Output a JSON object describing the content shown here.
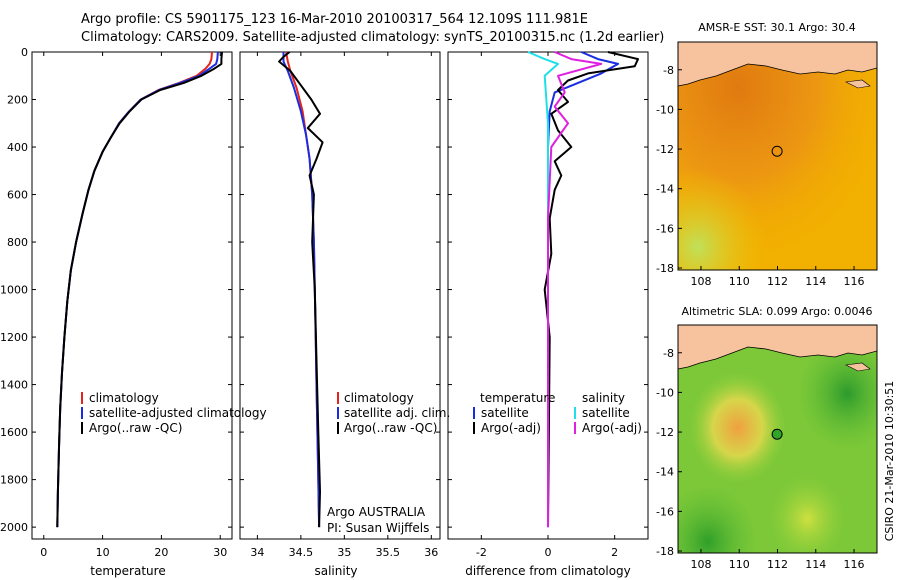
{
  "header": {
    "line1": "Argo profile: CS 5901175_123 16-Mar-2010 20100317_564 12.109S 111.981E",
    "line2": "Climatology: CARS2009. Satellite-adjusted climatology: synTS_20100315.nc (1.2d earlier)"
  },
  "side_label": "CSIRO 21-Mar-2010 10:30:51",
  "colors": {
    "climatology": "#e4231b",
    "satellite": "#1a2de0",
    "argo": "#000000",
    "salinity_sat": "#1fe0e8",
    "salinity_argo": "#e020e0",
    "land": "#f7c39e"
  },
  "chart_data": [
    {
      "id": "temperature",
      "type": "line",
      "xlabel": "temperature",
      "ylabel": "",
      "xlim": [
        -2,
        32
      ],
      "ylim": [
        2050,
        0
      ],
      "xticks": [
        0,
        10,
        20,
        30
      ],
      "yticks": [
        0,
        200,
        400,
        600,
        800,
        1000,
        1200,
        1400,
        1600,
        1800,
        2000
      ],
      "legend": {
        "position": "lower-center",
        "entries": [
          "climatology",
          "satellite-adjusted climatology",
          "Argo(..raw -QC)"
        ]
      },
      "series": [
        {
          "name": "climatology",
          "color_key": "climatology",
          "x": [
            28.6,
            28.5,
            28.2,
            27.5,
            26,
            23,
            19.5,
            16.5,
            14.5,
            12.8,
            11.4,
            10,
            8.6,
            7.6,
            6.6,
            5.5,
            4.6,
            4,
            3.5,
            3.1,
            2.8,
            2.6,
            2.4,
            2.3
          ],
          "y": [
            0,
            30,
            50,
            70,
            100,
            130,
            160,
            200,
            250,
            300,
            360,
            420,
            500,
            580,
            680,
            800,
            920,
            1050,
            1200,
            1350,
            1500,
            1650,
            1850,
            2000
          ]
        },
        {
          "name": "satellite-adjusted climatology",
          "color_key": "satellite",
          "x": [
            29.6,
            29.5,
            29.3,
            28.2,
            26.4,
            23.2,
            19.6,
            16.5,
            14.5,
            12.8,
            11.4,
            10,
            8.6,
            7.6,
            6.6,
            5.5,
            4.6,
            4,
            3.5,
            3.1,
            2.8,
            2.6,
            2.4,
            2.3
          ],
          "y": [
            0,
            30,
            50,
            70,
            100,
            130,
            160,
            200,
            250,
            300,
            360,
            420,
            500,
            580,
            680,
            800,
            920,
            1050,
            1200,
            1350,
            1500,
            1650,
            1850,
            2000
          ]
        },
        {
          "name": "Argo(..raw -QC)",
          "color_key": "argo",
          "x": [
            30.3,
            30.2,
            30.2,
            29,
            26.8,
            23.8,
            19.8,
            16.6,
            14.6,
            12.9,
            11.4,
            10,
            8.6,
            7.6,
            6.6,
            5.5,
            4.6,
            4,
            3.5,
            3.1,
            2.8,
            2.6,
            2.4,
            2.3
          ],
          "y": [
            0,
            30,
            50,
            70,
            100,
            130,
            160,
            200,
            250,
            300,
            360,
            420,
            500,
            580,
            680,
            800,
            920,
            1050,
            1200,
            1350,
            1500,
            1650,
            1850,
            2000
          ]
        }
      ]
    },
    {
      "id": "salinity",
      "type": "line",
      "xlabel": "salinity",
      "ylabel": "",
      "xlim": [
        33.8,
        36.1
      ],
      "ylim": [
        2050,
        0
      ],
      "xticks": [
        34,
        34.5,
        35,
        35.5,
        36
      ],
      "xtick_labels": [
        "34",
        "34.5",
        "35",
        "35.5",
        "36"
      ],
      "legend": {
        "position": "lower-center",
        "entries": [
          "climatology",
          "satellite adj. clim.",
          "Argo(..raw -QC)"
        ]
      },
      "annotation": [
        "Argo AUSTRALIA",
        "PI: Susan Wijffels"
      ],
      "series": [
        {
          "name": "climatology",
          "color_key": "climatology",
          "x": [
            34.33,
            34.35,
            34.38,
            34.45,
            34.52,
            34.56,
            34.6,
            34.63,
            34.65,
            34.66,
            34.67,
            34.68,
            34.69,
            34.7,
            34.71
          ],
          "y": [
            0,
            40,
            80,
            150,
            250,
            350,
            450,
            600,
            800,
            1000,
            1200,
            1400,
            1600,
            1800,
            2000
          ]
        },
        {
          "name": "satellite adj. clim.",
          "color_key": "satellite",
          "x": [
            34.3,
            34.3,
            34.35,
            34.42,
            34.5,
            34.56,
            34.6,
            34.63,
            34.65,
            34.66,
            34.67,
            34.68,
            34.69,
            34.7,
            34.71
          ],
          "y": [
            0,
            40,
            80,
            150,
            250,
            350,
            450,
            600,
            800,
            1000,
            1200,
            1400,
            1600,
            1800,
            2000
          ]
        },
        {
          "name": "Argo(..raw -QC)",
          "color_key": "argo",
          "x": [
            34.37,
            34.3,
            34.25,
            34.38,
            34.5,
            34.62,
            34.72,
            34.58,
            34.75,
            34.68,
            34.6,
            34.65,
            34.63,
            34.66,
            34.68,
            34.7,
            34.72,
            34.71
          ],
          "y": [
            0,
            20,
            40,
            80,
            140,
            200,
            260,
            320,
            380,
            450,
            520,
            600,
            800,
            1000,
            1300,
            1600,
            1850,
            2000
          ]
        }
      ]
    },
    {
      "id": "difference",
      "type": "line",
      "xlabel": "difference from climatology",
      "ylabel": "",
      "xlim": [
        -3,
        3
      ],
      "ylim": [
        2050,
        0
      ],
      "xticks": [
        -2,
        0,
        2
      ],
      "legend": {
        "position": "lower-center",
        "headers": [
          "temperature",
          "salinity"
        ],
        "entries": [
          "satellite",
          "Argo(-adj)",
          "satellite",
          "Argo(-adj)"
        ]
      },
      "series": [
        {
          "name": "temperature satellite",
          "color_key": "satellite",
          "x": [
            1,
            1.5,
            2.1,
            1.6,
            0.9,
            0.2,
            0.05,
            0,
            0,
            0
          ],
          "y": [
            0,
            30,
            50,
            90,
            130,
            170,
            250,
            400,
            1000,
            2000
          ]
        },
        {
          "name": "temperature Argo(-adj)",
          "color_key": "argo",
          "x": [
            1.8,
            2.7,
            2.6,
            1.2,
            0.6,
            0.3,
            0.6,
            0.1,
            0.3,
            0.7,
            0.2,
            0.4,
            0.2,
            0.05,
            0.1,
            -0.1,
            0.05,
            0
          ],
          "y": [
            0,
            30,
            60,
            90,
            120,
            160,
            210,
            260,
            330,
            400,
            460,
            520,
            580,
            700,
            850,
            1000,
            1200,
            2000
          ]
        },
        {
          "name": "salinity satellite",
          "color_key": "salinity_sat",
          "x": [
            -0.6,
            -0.1,
            0.3,
            -0.1,
            0,
            0,
            0
          ],
          "y": [
            0,
            30,
            50,
            100,
            300,
            1000,
            2000
          ]
        },
        {
          "name": "salinity Argo(-adj)",
          "color_key": "salinity_argo",
          "x": [
            0.2,
            0.7,
            1.6,
            0.3,
            0.5,
            0.2,
            0.6,
            0.1,
            0,
            0
          ],
          "y": [
            0,
            30,
            50,
            100,
            170,
            230,
            300,
            400,
            700,
            2000
          ]
        }
      ]
    }
  ],
  "maps": [
    {
      "id": "sst-map",
      "title": "AMSR-E SST: 30.1 Argo: 30.4",
      "xticks": [
        108,
        110,
        112,
        114,
        116
      ],
      "yticks": [
        -8,
        -10,
        -12,
        -14,
        -16,
        -18
      ],
      "lon_range": [
        106.8,
        117.2
      ],
      "lat_range": [
        -18.1,
        -6.6
      ],
      "float_position": {
        "lon": 111.98,
        "lat": -12.11
      },
      "marker_fill": "none"
    },
    {
      "id": "sla-map",
      "title": "Altimetric SLA: 0.099 Argo: 0.0046",
      "xticks": [
        108,
        110,
        112,
        114,
        116
      ],
      "yticks": [
        -8,
        -10,
        -12,
        -14,
        -16,
        -18
      ],
      "lon_range": [
        106.8,
        117.2
      ],
      "lat_range": [
        -18.1,
        -6.6
      ],
      "float_position": {
        "lon": 111.98,
        "lat": -12.11
      },
      "marker_fill": "#2fa52a"
    }
  ]
}
